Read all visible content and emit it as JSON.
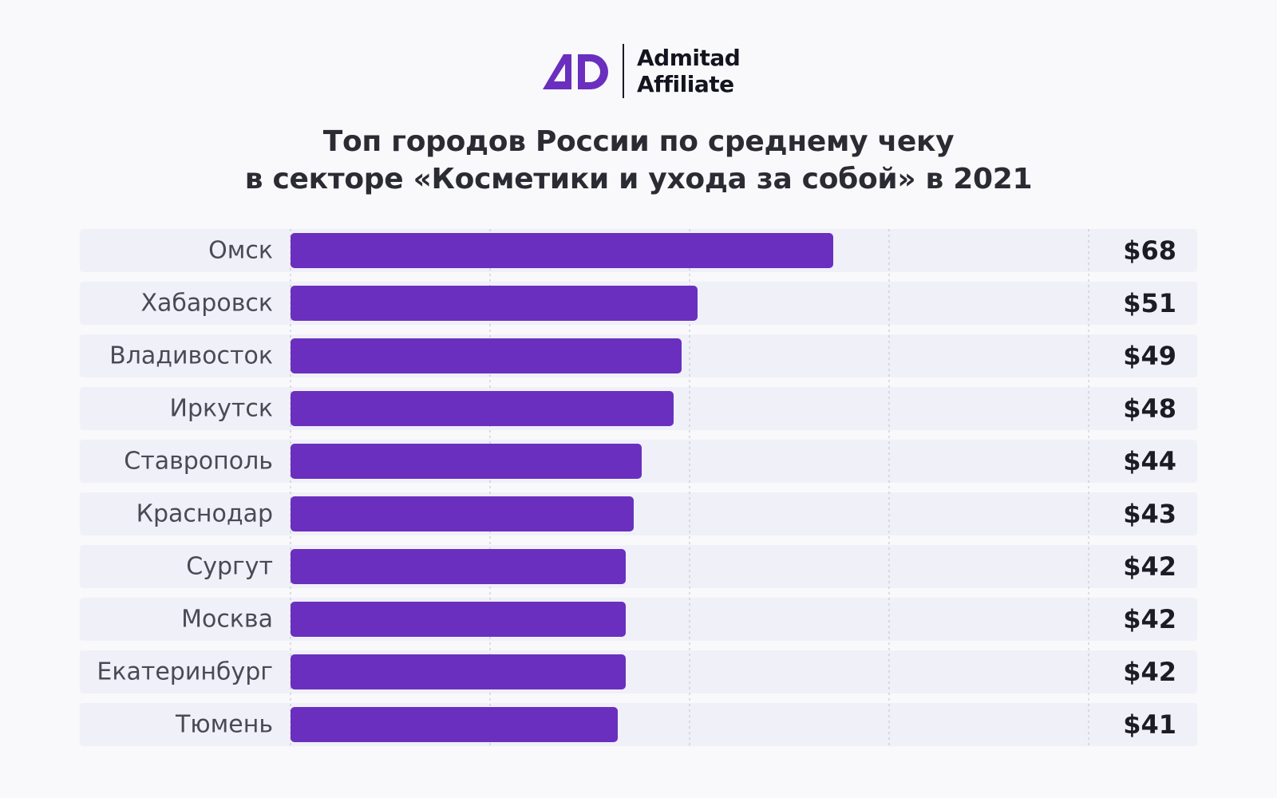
{
  "brand": {
    "name_line1": "Admitad",
    "name_line2": "Affiliate",
    "logo_mark": "AD",
    "accent_color": "#6a2fbe"
  },
  "title": {
    "line1": "Топ городов России по среднему чеку",
    "line2": "в секторе «Косметики и ухода за собой» в 2021"
  },
  "chart_data": {
    "type": "bar",
    "orientation": "horizontal",
    "title": "Топ городов России по среднему чеку в секторе «Косметики и ухода за собой» в 2021",
    "categories": [
      "Омск",
      "Хабаровск",
      "Владивосток",
      "Иркутск",
      "Ставрополь",
      "Краснодар",
      "Сургут",
      "Москва",
      "Екатеринбург",
      "Тюмень"
    ],
    "values": [
      68,
      51,
      49,
      48,
      44,
      43,
      42,
      42,
      42,
      41
    ],
    "value_labels": [
      "$68",
      "$51",
      "$49",
      "$48",
      "$44",
      "$43",
      "$42",
      "$42",
      "$42",
      "$41"
    ],
    "xlim": [
      0,
      100
    ],
    "gridlines": [
      25,
      50,
      75,
      100
    ],
    "grid": true,
    "grid_style": "dashed",
    "bar_color": "#6a2fbe",
    "row_background": "#f0f0f8"
  }
}
